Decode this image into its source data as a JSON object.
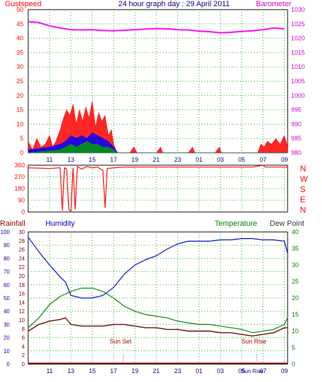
{
  "colors": {
    "gust": "#ff0000",
    "wind_avg": "#0000ff",
    "wind_min": "#00a000",
    "barometer": "#ff00ff",
    "direction": "#ff0000",
    "humidity": "#0000cc",
    "temperature": "#008000",
    "dewpoint": "#660000",
    "rainfall": "#aa0000",
    "axis_gust": "#ff0000",
    "axis_baro": "#cc00cc",
    "axis_title": "#000080",
    "grid": "#00aa00",
    "axis_hum": "#0000aa",
    "axis_temp": "#008000"
  },
  "chart_data": [
    {
      "type": "line",
      "title": "24 hour graph day : 29 April 2011",
      "left_label": "Gustspeed",
      "right_label": "Barometer",
      "x_ticks": [
        "11",
        "13",
        "15",
        "17",
        "19",
        "21",
        "23",
        "01",
        "03",
        "05",
        "07",
        "09"
      ],
      "y_left_ticks": [
        "0",
        "5",
        "10",
        "15",
        "20",
        "25",
        "30",
        "35",
        "40",
        "45",
        "50"
      ],
      "y_right_ticks": [
        "980",
        "985",
        "990",
        "995",
        "1000",
        "1005",
        "1010",
        "1015",
        "1020",
        "1025",
        "1030"
      ],
      "ylim_left": [
        0,
        50
      ],
      "ylim_right": [
        980,
        1030
      ],
      "x_range_hours": [
        9.0,
        33.3
      ],
      "series": [
        {
          "key": "barometer",
          "axis": "right",
          "points": [
            [
              9.0,
              1025.8
            ],
            [
              10.0,
              1025.5
            ],
            [
              11.0,
              1024.3
            ],
            [
              12.0,
              1023.6
            ],
            [
              13.0,
              1023.0
            ],
            [
              14.0,
              1022.9
            ],
            [
              15.0,
              1023.0
            ],
            [
              16.0,
              1022.7
            ],
            [
              17.0,
              1022.6
            ],
            [
              18.0,
              1022.8
            ],
            [
              19.0,
              1023.0
            ],
            [
              20.0,
              1023.2
            ],
            [
              21.0,
              1023.4
            ],
            [
              22.0,
              1023.3
            ],
            [
              23.0,
              1023.0
            ],
            [
              24.0,
              1022.9
            ],
            [
              25.0,
              1022.5
            ],
            [
              26.0,
              1022.3
            ],
            [
              27.0,
              1021.9
            ],
            [
              28.0,
              1022.1
            ],
            [
              29.0,
              1022.4
            ],
            [
              30.0,
              1022.6
            ],
            [
              31.0,
              1023.0
            ],
            [
              32.0,
              1023.6
            ],
            [
              33.0,
              1023.3
            ]
          ]
        },
        {
          "key": "gust",
          "axis": "left",
          "points": [
            [
              9.0,
              4
            ],
            [
              9.4,
              1
            ],
            [
              9.8,
              5
            ],
            [
              10.2,
              2
            ],
            [
              10.6,
              3
            ],
            [
              11.0,
              6
            ],
            [
              11.3,
              2
            ],
            [
              11.6,
              4
            ],
            [
              12.0,
              8
            ],
            [
              12.3,
              12
            ],
            [
              12.6,
              15
            ],
            [
              12.9,
              13
            ],
            [
              13.2,
              17
            ],
            [
              13.5,
              10
            ],
            [
              13.8,
              15
            ],
            [
              14.1,
              11
            ],
            [
              14.4,
              16
            ],
            [
              14.7,
              12
            ],
            [
              15.0,
              18
            ],
            [
              15.3,
              9
            ],
            [
              15.6,
              14
            ],
            [
              15.9,
              11
            ],
            [
              16.2,
              13
            ],
            [
              16.5,
              6
            ],
            [
              16.8,
              8
            ],
            [
              17.0,
              3
            ],
            [
              17.3,
              0
            ],
            [
              18.5,
              0
            ],
            [
              18.9,
              2
            ],
            [
              19.2,
              0
            ],
            [
              21.0,
              0
            ],
            [
              21.4,
              2
            ],
            [
              21.6,
              0
            ],
            [
              24.0,
              0
            ],
            [
              24.4,
              2
            ],
            [
              24.6,
              0
            ],
            [
              26.5,
              0
            ],
            [
              26.9,
              2
            ],
            [
              27.1,
              0
            ],
            [
              30.5,
              0
            ],
            [
              30.8,
              3
            ],
            [
              31.1,
              2
            ],
            [
              31.4,
              4
            ],
            [
              31.8,
              3
            ],
            [
              32.2,
              5
            ],
            [
              32.6,
              3
            ],
            [
              33.0,
              6
            ],
            [
              33.3,
              2
            ]
          ]
        },
        {
          "key": "wind_avg",
          "axis": "left",
          "points": [
            [
              9.0,
              1
            ],
            [
              10.0,
              1.5
            ],
            [
              11.0,
              2
            ],
            [
              12.0,
              3
            ],
            [
              12.5,
              4
            ],
            [
              13.0,
              6
            ],
            [
              13.5,
              5
            ],
            [
              14.0,
              6
            ],
            [
              14.5,
              5
            ],
            [
              15.0,
              7
            ],
            [
              15.5,
              6
            ],
            [
              16.0,
              5
            ],
            [
              16.5,
              4
            ],
            [
              17.0,
              2
            ],
            [
              17.4,
              0
            ],
            [
              33.3,
              0
            ]
          ]
        },
        {
          "key": "wind_min",
          "axis": "left",
          "points": [
            [
              9.0,
              0
            ],
            [
              12.0,
              1
            ],
            [
              12.5,
              2
            ],
            [
              13.0,
              3
            ],
            [
              13.5,
              2
            ],
            [
              14.0,
              3
            ],
            [
              14.5,
              4
            ],
            [
              15.0,
              3
            ],
            [
              15.5,
              3
            ],
            [
              16.0,
              2
            ],
            [
              16.5,
              2
            ],
            [
              17.0,
              1
            ],
            [
              17.3,
              0
            ],
            [
              33.3,
              0
            ]
          ]
        }
      ]
    },
    {
      "type": "line",
      "title": "",
      "y_ticks": [
        "0",
        "90",
        "180",
        "270",
        "360"
      ],
      "ylim": [
        0,
        360
      ],
      "direction_letters": [
        "N",
        "W",
        "S",
        "E",
        "N"
      ],
      "series": [
        {
          "key": "direction",
          "points": [
            [
              9.0,
              340
            ],
            [
              11.0,
              335
            ],
            [
              12.0,
              340
            ],
            [
              12.2,
              10
            ],
            [
              12.4,
              340
            ],
            [
              12.6,
              330
            ],
            [
              12.8,
              20
            ],
            [
              13.0,
              5
            ],
            [
              13.2,
              340
            ],
            [
              13.4,
              20
            ],
            [
              13.6,
              350
            ],
            [
              14.0,
              330
            ],
            [
              14.5,
              350
            ],
            [
              15.0,
              340
            ],
            [
              15.5,
              345
            ],
            [
              16.0,
              320
            ],
            [
              16.2,
              30
            ],
            [
              16.4,
              335
            ],
            [
              17.0,
              340
            ],
            [
              18.0,
              345
            ],
            [
              24.0,
              345
            ],
            [
              30.0,
              345
            ],
            [
              31.0,
              360
            ],
            [
              31.2,
              345
            ],
            [
              33.3,
              345
            ]
          ]
        }
      ]
    },
    {
      "type": "line",
      "title": "",
      "left_label_1": "Rainfall",
      "left_label_2": "Humidity",
      "right_label_1": "Temperature",
      "right_label_2": "Dew Point",
      "x_ticks": [
        "11",
        "13",
        "15",
        "17",
        "19",
        "21",
        "23",
        "01",
        "03",
        "05",
        "Sun Rise",
        "07",
        "09"
      ],
      "annotations": [
        "Sun Set",
        "Sun Rise"
      ],
      "y_rain_ticks": [
        "0",
        "2",
        "4",
        "6",
        "8",
        "10",
        "12",
        "14",
        "16",
        "18",
        "20",
        "22",
        "24",
        "26",
        "28",
        "30"
      ],
      "y_hum_ticks": [
        "0",
        "10",
        "20",
        "30",
        "40",
        "50",
        "60",
        "70",
        "80",
        "90",
        "100"
      ],
      "y_temp_ticks": [
        "0",
        "5",
        "10",
        "15",
        "20",
        "25",
        "30",
        "35",
        "40"
      ],
      "ylim_humidity": [
        0,
        100
      ],
      "ylim_temp": [
        0,
        40
      ],
      "series": [
        {
          "key": "humidity",
          "points": [
            [
              9.0,
              96
            ],
            [
              10.0,
              85
            ],
            [
              11.0,
              75
            ],
            [
              12.0,
              66
            ],
            [
              12.5,
              62
            ],
            [
              13.0,
              52
            ],
            [
              14.0,
              50
            ],
            [
              15.0,
              50
            ],
            [
              15.5,
              51
            ],
            [
              16.0,
              52
            ],
            [
              17.0,
              58
            ],
            [
              18.0,
              68
            ],
            [
              19.0,
              75
            ],
            [
              20.0,
              79
            ],
            [
              21.0,
              82
            ],
            [
              22.0,
              87
            ],
            [
              23.0,
              91
            ],
            [
              24.0,
              93
            ],
            [
              25.0,
              93
            ],
            [
              26.0,
              93
            ],
            [
              27.0,
              94
            ],
            [
              28.0,
              94
            ],
            [
              29.0,
              95
            ],
            [
              30.0,
              95
            ],
            [
              31.0,
              94
            ],
            [
              32.0,
              94
            ],
            [
              33.0,
              93
            ],
            [
              33.3,
              84
            ]
          ]
        },
        {
          "key": "temperature",
          "points": [
            [
              9.0,
              11
            ],
            [
              10.0,
              14
            ],
            [
              11.0,
              18
            ],
            [
              12.0,
              20.5
            ],
            [
              13.0,
              22
            ],
            [
              14.0,
              23
            ],
            [
              15.0,
              23
            ],
            [
              16.0,
              22
            ],
            [
              17.0,
              20
            ],
            [
              18.0,
              17.5
            ],
            [
              19.0,
              16
            ],
            [
              20.0,
              15
            ],
            [
              21.0,
              14.5
            ],
            [
              22.0,
              14
            ],
            [
              23.0,
              13
            ],
            [
              24.0,
              12.5
            ],
            [
              25.0,
              12
            ],
            [
              26.0,
              12
            ],
            [
              27.0,
              11.5
            ],
            [
              28.0,
              11
            ],
            [
              29.0,
              10.5
            ],
            [
              30.0,
              9.5
            ],
            [
              31.0,
              10
            ],
            [
              32.0,
              10.5
            ],
            [
              33.0,
              12
            ],
            [
              33.3,
              14
            ]
          ]
        },
        {
          "key": "dewpoint",
          "points": [
            [
              9.0,
              10
            ],
            [
              10.0,
              12
            ],
            [
              11.0,
              13
            ],
            [
              12.0,
              13.5
            ],
            [
              12.5,
              14
            ],
            [
              13.0,
              12
            ],
            [
              14.0,
              11.5
            ],
            [
              15.0,
              11.5
            ],
            [
              16.0,
              11.5
            ],
            [
              17.0,
              12
            ],
            [
              18.0,
              12
            ],
            [
              19.0,
              11.5
            ],
            [
              20.0,
              11
            ],
            [
              21.0,
              11
            ],
            [
              22.0,
              10.5
            ],
            [
              23.0,
              10.5
            ],
            [
              24.0,
              10
            ],
            [
              25.0,
              10
            ],
            [
              26.0,
              10
            ],
            [
              27.0,
              9.5
            ],
            [
              28.0,
              9.5
            ],
            [
              29.0,
              9
            ],
            [
              30.0,
              8.5
            ],
            [
              31.0,
              9
            ],
            [
              32.0,
              9.5
            ],
            [
              33.0,
              11
            ],
            [
              33.3,
              11
            ]
          ]
        },
        {
          "key": "rainfall",
          "points": [
            [
              9.0,
              0.2
            ],
            [
              33.3,
              0.2
            ]
          ]
        }
      ]
    }
  ]
}
